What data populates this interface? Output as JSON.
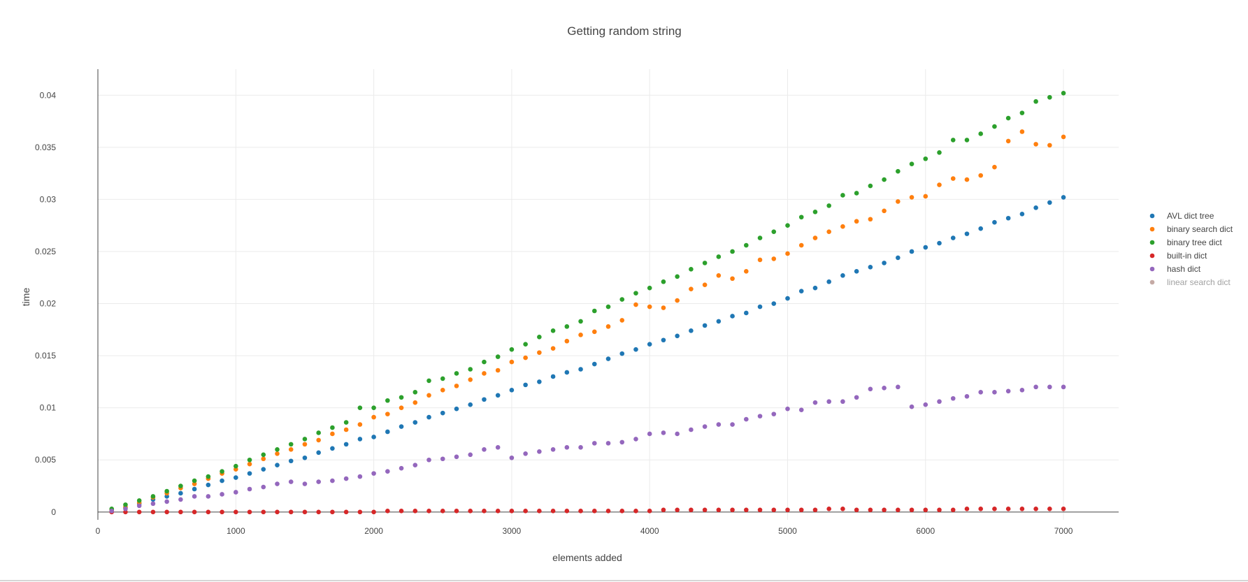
{
  "chart_data": {
    "type": "scatter",
    "title": "Getting random string",
    "xlabel": "elements added",
    "ylabel": "time",
    "xlim": [
      0,
      7400
    ],
    "ylim": [
      -0.00075,
      0.0425
    ],
    "x_ticks": [
      "0",
      "1000",
      "2000",
      "3000",
      "4000",
      "5000",
      "6000",
      "7000"
    ],
    "y_ticks": [
      "0",
      "0.005",
      "0.01",
      "0.015",
      "0.02",
      "0.025",
      "0.03",
      "0.035",
      "0.04"
    ],
    "grid": true,
    "legend_position": "right",
    "x": [
      100,
      200,
      300,
      400,
      500,
      600,
      700,
      800,
      900,
      1000,
      1100,
      1200,
      1300,
      1400,
      1500,
      1600,
      1700,
      1800,
      1900,
      2000,
      2100,
      2200,
      2300,
      2400,
      2500,
      2600,
      2700,
      2800,
      2900,
      3000,
      3100,
      3200,
      3300,
      3400,
      3500,
      3600,
      3700,
      3800,
      3900,
      4000,
      4100,
      4200,
      4300,
      4400,
      4500,
      4600,
      4700,
      4800,
      4900,
      5000,
      5100,
      5200,
      5300,
      5400,
      5500,
      5600,
      5700,
      5800,
      5900,
      6000,
      6100,
      6200,
      6300,
      6400,
      6500,
      6600,
      6700,
      6800,
      6900,
      7000
    ],
    "series": [
      {
        "name": "AVL dict tree",
        "color": "#1f77b4",
        "values": [
          0.0002,
          0.0004,
          0.0008,
          0.0012,
          0.0015,
          0.0018,
          0.0022,
          0.0026,
          0.003,
          0.0033,
          0.0037,
          0.0041,
          0.0045,
          0.0049,
          0.0052,
          0.0057,
          0.0061,
          0.0065,
          0.007,
          0.0072,
          0.0077,
          0.0082,
          0.0086,
          0.0091,
          0.0095,
          0.0099,
          0.0103,
          0.0108,
          0.0112,
          0.0117,
          0.0122,
          0.0125,
          0.013,
          0.0134,
          0.0137,
          0.0142,
          0.0147,
          0.0152,
          0.0156,
          0.0161,
          0.0165,
          0.0169,
          0.0174,
          0.0179,
          0.0183,
          0.0188,
          0.0191,
          0.0197,
          0.02,
          0.0205,
          0.0212,
          0.0215,
          0.0221,
          0.0227,
          0.0231,
          0.0235,
          0.0239,
          0.0244,
          0.025,
          0.0254,
          0.0258,
          0.0263,
          0.0267,
          0.0272,
          0.0278,
          0.0282,
          0.0286,
          0.0292,
          0.0297,
          0.0302
        ]
      },
      {
        "name": "binary search dict",
        "color": "#ff7f0e",
        "values": [
          0.0002,
          0.0005,
          0.0009,
          0.0014,
          0.0018,
          0.0023,
          0.0027,
          0.0032,
          0.0037,
          0.0041,
          0.0046,
          0.0051,
          0.0056,
          0.006,
          0.0065,
          0.0069,
          0.0075,
          0.0079,
          0.0084,
          0.0091,
          0.0094,
          0.01,
          0.0105,
          0.0112,
          0.0117,
          0.0121,
          0.0127,
          0.0133,
          0.0136,
          0.0144,
          0.0148,
          0.0153,
          0.0157,
          0.0164,
          0.017,
          0.0173,
          0.0178,
          0.0184,
          0.0199,
          0.0197,
          0.0196,
          0.0203,
          0.0214,
          0.0218,
          0.0227,
          0.0224,
          0.0231,
          0.0242,
          0.0243,
          0.0248,
          0.0256,
          0.0263,
          0.0269,
          0.0274,
          0.0279,
          0.0281,
          0.0289,
          0.0298,
          0.0302,
          0.0303,
          0.0314,
          0.032,
          0.0319,
          0.0323,
          0.0331,
          0.0356,
          0.0365,
          0.0353,
          0.0352,
          0.036
        ]
      },
      {
        "name": "binary tree dict",
        "color": "#2ca02c",
        "values": [
          0.0003,
          0.0007,
          0.0011,
          0.0015,
          0.002,
          0.0025,
          0.003,
          0.0034,
          0.0039,
          0.0044,
          0.005,
          0.0055,
          0.006,
          0.0065,
          0.007,
          0.0076,
          0.0081,
          0.0086,
          0.01,
          0.01,
          0.0107,
          0.011,
          0.0115,
          0.0126,
          0.0128,
          0.0133,
          0.0137,
          0.0144,
          0.0149,
          0.0156,
          0.0161,
          0.0168,
          0.0174,
          0.0178,
          0.0183,
          0.0193,
          0.0197,
          0.0204,
          0.021,
          0.0215,
          0.0221,
          0.0226,
          0.0233,
          0.0239,
          0.0245,
          0.025,
          0.0256,
          0.0263,
          0.0269,
          0.0275,
          0.0283,
          0.0288,
          0.0294,
          0.0304,
          0.0306,
          0.0313,
          0.0319,
          0.0327,
          0.0334,
          0.0339,
          0.0345,
          0.0357,
          0.0357,
          0.0363,
          0.037,
          0.0378,
          0.0383,
          0.0394,
          0.0398,
          0.0402
        ]
      },
      {
        "name": "built-in dict",
        "color": "#d62728",
        "values": [
          0.0,
          0.0,
          0.0,
          0.0,
          0.0,
          0.0,
          0.0,
          0.0,
          0.0,
          0.0,
          0.0,
          0.0,
          0.0,
          0.0,
          0.0,
          0.0,
          0.0,
          0.0,
          0.0,
          0.0,
          0.0001,
          0.0001,
          0.0001,
          0.0001,
          0.0001,
          0.0001,
          0.0001,
          0.0001,
          0.0001,
          0.0001,
          0.0001,
          0.0001,
          0.0001,
          0.0001,
          0.0001,
          0.0001,
          0.0001,
          0.0001,
          0.0001,
          0.0001,
          0.0002,
          0.0002,
          0.0002,
          0.0002,
          0.0002,
          0.0002,
          0.0002,
          0.0002,
          0.0002,
          0.0002,
          0.0002,
          0.0002,
          0.0003,
          0.0003,
          0.0002,
          0.0002,
          0.0002,
          0.0002,
          0.0002,
          0.0002,
          0.0002,
          0.0002,
          0.0003,
          0.0003,
          0.0003,
          0.0003,
          0.0003,
          0.0003,
          0.0003,
          0.0003
        ]
      },
      {
        "name": "hash dict",
        "color": "#9467bd",
        "values": [
          0.0001,
          0.0003,
          0.0006,
          0.0008,
          0.001,
          0.0012,
          0.0015,
          0.0015,
          0.0017,
          0.0019,
          0.0022,
          0.0024,
          0.0027,
          0.0029,
          0.0027,
          0.0029,
          0.003,
          0.0032,
          0.0034,
          0.0037,
          0.0039,
          0.0042,
          0.0045,
          0.005,
          0.0051,
          0.0053,
          0.0055,
          0.006,
          0.0062,
          0.0052,
          0.0056,
          0.0058,
          0.006,
          0.0062,
          0.0062,
          0.0066,
          0.0066,
          0.0067,
          0.007,
          0.0075,
          0.0076,
          0.0075,
          0.0079,
          0.0082,
          0.0084,
          0.0084,
          0.0089,
          0.0092,
          0.0094,
          0.0099,
          0.0098,
          0.0105,
          0.0106,
          0.0106,
          0.011,
          0.0118,
          0.0119,
          0.012,
          0.0101,
          0.0103,
          0.0106,
          0.0109,
          0.0111,
          0.0115,
          0.0115,
          0.0116,
          0.0117,
          0.012,
          0.012,
          0.012
        ]
      },
      {
        "name": "linear search dict",
        "color": "#8c564b",
        "hidden": true,
        "values": []
      }
    ]
  }
}
